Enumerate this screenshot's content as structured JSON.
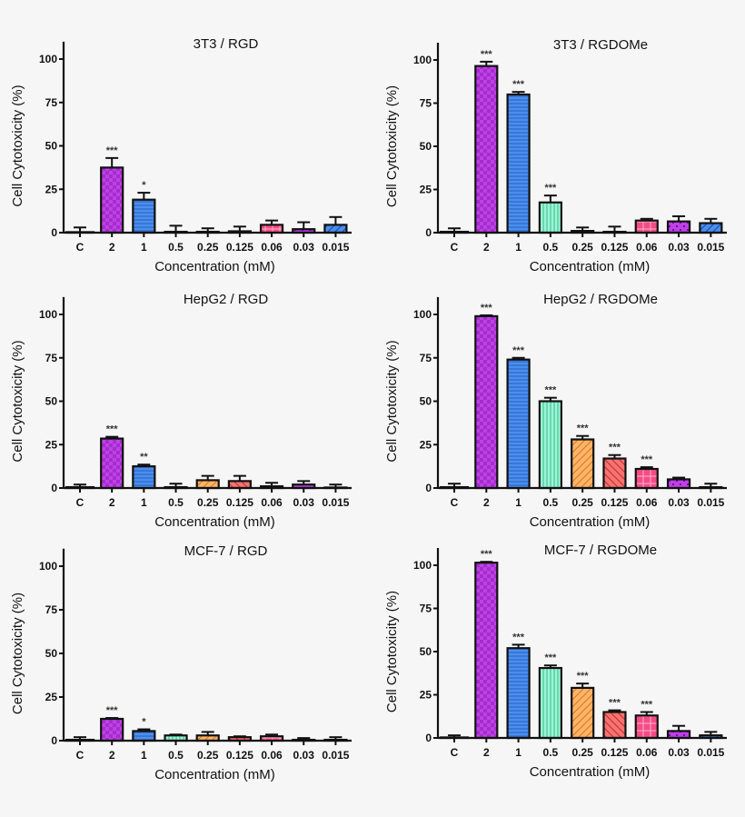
{
  "colors": {
    "background": "#f6f6f6",
    "control": "#ffffff",
    "purple_checker": "#c040e8",
    "blue_lines": "#4a8ff0",
    "mint_vertical": "#9af5d5",
    "orange_diagonal": "#ffb468",
    "salmon_diagonal": "#f87272",
    "pink_grid": "#f54c86"
  },
  "chart_data": [
    {
      "type": "bar",
      "title": "3T3 / RGD",
      "xlabel": "Concentration (mM)",
      "ylabel": "Cell Cytotoxicity (%)",
      "ylim": [
        0,
        110
      ],
      "yticks": [
        "0",
        "25",
        "50",
        "75",
        "100"
      ],
      "grid": false,
      "categories": [
        "C",
        "2",
        "1",
        "0.5",
        "0.25",
        "0.125",
        "0.06",
        "0.03",
        "0.015"
      ],
      "values": [
        0.3,
        37.5,
        19,
        0.5,
        0.5,
        0.8,
        4.5,
        2,
        4.5
      ],
      "error_upper": [
        3,
        43,
        23,
        4,
        2.5,
        3.5,
        7,
        6,
        9
      ],
      "annotations": [
        "",
        "***",
        "*",
        "",
        "",
        "",
        "",
        "",
        ""
      ]
    },
    {
      "type": "bar",
      "title": "3T3 / RGDOMe",
      "xlabel": "Concentration (mM)",
      "ylabel": "Cell Cytotoxicity (%)",
      "ylim": [
        0,
        110
      ],
      "yticks": [
        "0",
        "25",
        "50",
        "75",
        "100"
      ],
      "grid": false,
      "categories": [
        "C",
        "2",
        "1",
        "0.5",
        "0.25",
        "0.125",
        "0.06",
        "0.03",
        "0.015"
      ],
      "values": [
        0.5,
        96.5,
        80,
        17.5,
        1,
        0.5,
        7,
        6.5,
        5.5
      ],
      "error_upper": [
        2.5,
        99,
        81.5,
        21.5,
        3,
        3.5,
        8,
        9.5,
        8
      ],
      "annotations": [
        "",
        "***",
        "***",
        "***",
        "",
        "",
        "",
        "",
        ""
      ]
    },
    {
      "type": "bar",
      "title": "HepG2 / RGD",
      "xlabel": "Concentration (mM)",
      "ylabel": "Cell Cytotoxicity (%)",
      "ylim": [
        0,
        110
      ],
      "yticks": [
        "0",
        "25",
        "50",
        "75",
        "100"
      ],
      "grid": false,
      "categories": [
        "C",
        "2",
        "1",
        "0.5",
        "0.25",
        "0.125",
        "0.06",
        "0.03",
        "0.015"
      ],
      "values": [
        0.5,
        28.5,
        12.5,
        0.5,
        4.5,
        4,
        1,
        2,
        0.3
      ],
      "error_upper": [
        2,
        29.5,
        13.5,
        2.5,
        7,
        7,
        3,
        4,
        2
      ],
      "annotations": [
        "",
        "***",
        "**",
        "",
        "",
        "",
        "",
        "",
        ""
      ]
    },
    {
      "type": "bar",
      "title": "HepG2 / RGDOMe",
      "xlabel": "Concentration (mM)",
      "ylabel": "Cell Cytotoxicity (%)",
      "ylim": [
        0,
        110
      ],
      "yticks": [
        "0",
        "25",
        "50",
        "75",
        "100"
      ],
      "grid": false,
      "categories": [
        "C",
        "2",
        "1",
        "0.5",
        "0.25",
        "0.125",
        "0.06",
        "0.03",
        "0.015"
      ],
      "values": [
        0.5,
        99,
        74,
        50,
        28,
        17,
        11,
        5,
        0.5
      ],
      "error_upper": [
        2.5,
        99.5,
        75,
        52,
        30,
        19,
        12,
        6,
        2.5
      ],
      "annotations": [
        "",
        "***",
        "***",
        "***",
        "***",
        "***",
        "***",
        "",
        ""
      ]
    },
    {
      "type": "bar",
      "title": "MCF-7 / RGD",
      "xlabel": "Concentration (mM)",
      "ylabel": "Cell Cytotoxicity (%)",
      "ylim": [
        0,
        110
      ],
      "yticks": [
        "0",
        "25",
        "50",
        "75",
        "100"
      ],
      "grid": false,
      "categories": [
        "C",
        "2",
        "1",
        "0.5",
        "0.25",
        "0.125",
        "0.06",
        "0.03",
        "0.015"
      ],
      "values": [
        0.5,
        12.5,
        5.5,
        3,
        3,
        2,
        2.5,
        0.5,
        0.5
      ],
      "error_upper": [
        2,
        13,
        6.5,
        3.5,
        5,
        2.5,
        3.5,
        1.5,
        2
      ],
      "annotations": [
        "",
        "***",
        "*",
        "",
        "",
        "",
        "",
        "",
        ""
      ]
    },
    {
      "type": "bar",
      "title": "MCF-7 / RGDOMe",
      "xlabel": "Concentration (mM)",
      "ylabel": "Cell Cytotoxicity (%)",
      "ylim": [
        0,
        110
      ],
      "yticks": [
        "0",
        "25",
        "50",
        "75",
        "100"
      ],
      "grid": false,
      "categories": [
        "C",
        "2",
        "1",
        "0.5",
        "0.25",
        "0.125",
        "0.06",
        "0.03",
        "0.015"
      ],
      "values": [
        0.3,
        101.5,
        52,
        40.5,
        29,
        15,
        13,
        4,
        1.5
      ],
      "error_upper": [
        1.5,
        102,
        54,
        42,
        31.5,
        16,
        15,
        7,
        3.5
      ],
      "annotations": [
        "",
        "***",
        "***",
        "***",
        "***",
        "***",
        "***",
        "",
        ""
      ]
    }
  ]
}
